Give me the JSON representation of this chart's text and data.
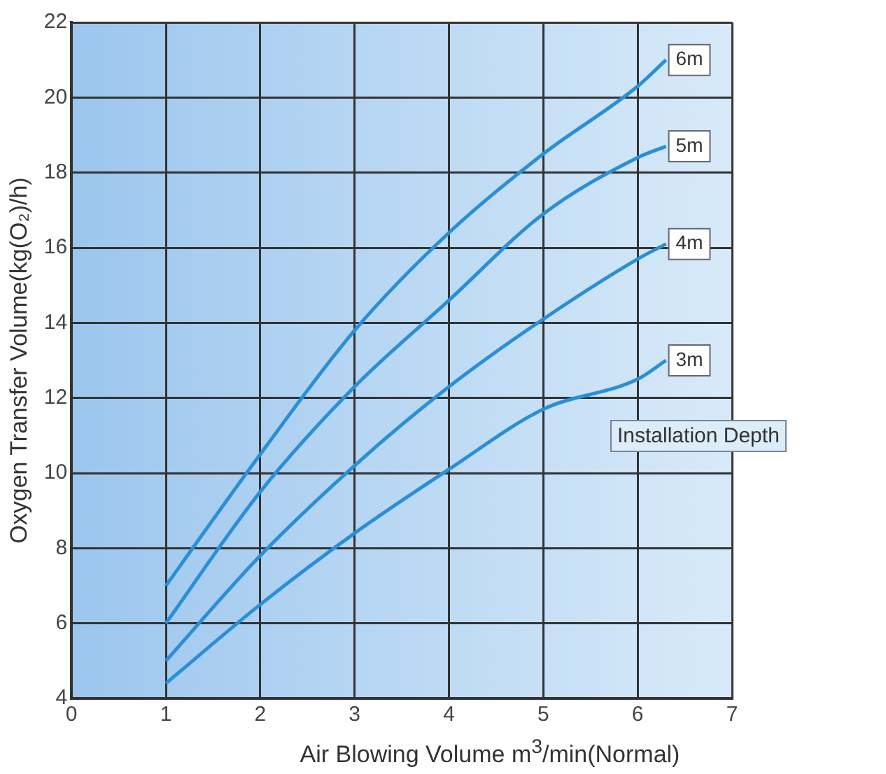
{
  "chart_data": {
    "type": "line",
    "xlabel": "Air Blowing Volume m$^{3}$/min(Normal)",
    "ylabel": "Oxygen Transfer Volume(kg(O₂)/h)",
    "x": [
      1,
      2,
      3,
      4,
      5,
      6,
      6.3
    ],
    "series": [
      {
        "name": "6m",
        "color": "#2a8fd6",
        "values": [
          7.0,
          10.5,
          13.8,
          16.4,
          18.5,
          20.3,
          21.0
        ]
      },
      {
        "name": "5m",
        "color": "#2a8fd6",
        "values": [
          6.0,
          9.5,
          12.3,
          14.6,
          16.9,
          18.4,
          18.7
        ]
      },
      {
        "name": "4m",
        "color": "#2a8fd6",
        "values": [
          5.0,
          7.8,
          10.2,
          12.3,
          14.1,
          15.7,
          16.1
        ]
      },
      {
        "name": "3m",
        "color": "#2a8fd6",
        "values": [
          4.4,
          6.5,
          8.4,
          10.1,
          11.7,
          12.5,
          13.0
        ]
      }
    ],
    "annotations": [
      "Installation Depth"
    ],
    "xlim": [
      0,
      7
    ],
    "xticks": [
      0,
      1,
      2,
      3,
      4,
      5,
      6,
      7
    ],
    "ylim": [
      4,
      22
    ],
    "yticks": [
      4,
      6,
      8,
      10,
      12,
      14,
      16,
      18,
      20,
      22
    ],
    "grid": true,
    "legend": false,
    "marker": "none",
    "line_style": "solid"
  }
}
